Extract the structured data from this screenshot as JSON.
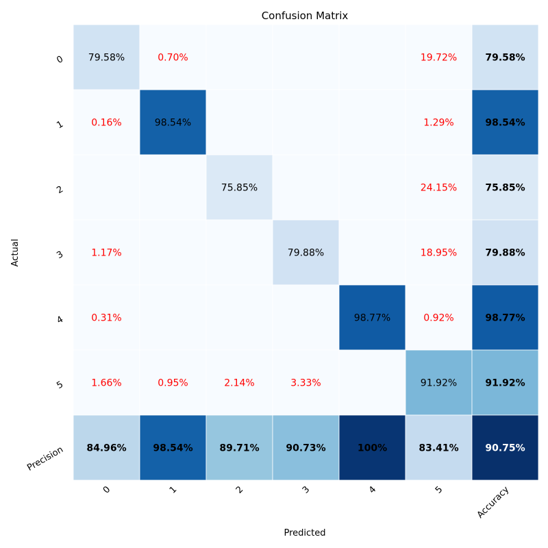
{
  "chart_data": {
    "type": "heatmap",
    "title": "Confusion Matrix",
    "xlabel": "Predicted",
    "ylabel": "Actual",
    "x_tick_labels": [
      "0",
      "1",
      "2",
      "3",
      "4",
      "5",
      "Accuracy"
    ],
    "y_tick_labels": [
      "0",
      "1",
      "2",
      "3",
      "4",
      "5",
      "Precision"
    ],
    "colormap": "Blues",
    "grid_line_color": "#ffffff",
    "diagonal_text_color": "#000000",
    "off_diagonal_text_color": "#ff0000",
    "summary_text_color": "#000000",
    "summary_text_bold": true,
    "rows": [
      {
        "actual": "0",
        "cells": [
          {
            "value": 79.58,
            "label": "79.58%"
          },
          {
            "value": 0.7,
            "label": "0.70%"
          },
          {
            "value": 0,
            "label": ""
          },
          {
            "value": 0,
            "label": ""
          },
          {
            "value": 0,
            "label": ""
          },
          {
            "value": 19.72,
            "label": "19.72%"
          },
          {
            "value": 79.58,
            "label": "79.58%"
          }
        ]
      },
      {
        "actual": "1",
        "cells": [
          {
            "value": 0.16,
            "label": "0.16%"
          },
          {
            "value": 98.54,
            "label": "98.54%"
          },
          {
            "value": 0,
            "label": ""
          },
          {
            "value": 0,
            "label": ""
          },
          {
            "value": 0,
            "label": ""
          },
          {
            "value": 1.29,
            "label": "1.29%"
          },
          {
            "value": 98.54,
            "label": "98.54%"
          }
        ]
      },
      {
        "actual": "2",
        "cells": [
          {
            "value": 0,
            "label": ""
          },
          {
            "value": 0,
            "label": ""
          },
          {
            "value": 75.85,
            "label": "75.85%"
          },
          {
            "value": 0,
            "label": ""
          },
          {
            "value": 0,
            "label": ""
          },
          {
            "value": 24.15,
            "label": "24.15%"
          },
          {
            "value": 75.85,
            "label": "75.85%"
          }
        ]
      },
      {
        "actual": "3",
        "cells": [
          {
            "value": 1.17,
            "label": "1.17%"
          },
          {
            "value": 0,
            "label": ""
          },
          {
            "value": 0,
            "label": ""
          },
          {
            "value": 79.88,
            "label": "79.88%"
          },
          {
            "value": 0,
            "label": ""
          },
          {
            "value": 18.95,
            "label": "18.95%"
          },
          {
            "value": 79.88,
            "label": "79.88%"
          }
        ]
      },
      {
        "actual": "4",
        "cells": [
          {
            "value": 0.31,
            "label": "0.31%"
          },
          {
            "value": 0,
            "label": ""
          },
          {
            "value": 0,
            "label": ""
          },
          {
            "value": 0,
            "label": ""
          },
          {
            "value": 98.77,
            "label": "98.77%"
          },
          {
            "value": 0.92,
            "label": "0.92%"
          },
          {
            "value": 98.77,
            "label": "98.77%"
          }
        ]
      },
      {
        "actual": "5",
        "cells": [
          {
            "value": 1.66,
            "label": "1.66%"
          },
          {
            "value": 0.95,
            "label": "0.95%"
          },
          {
            "value": 2.14,
            "label": "2.14%"
          },
          {
            "value": 3.33,
            "label": "3.33%"
          },
          {
            "value": 0,
            "label": ""
          },
          {
            "value": 91.92,
            "label": "91.92%"
          },
          {
            "value": 91.92,
            "label": "91.92%"
          }
        ]
      },
      {
        "actual": "Precision",
        "cells": [
          {
            "value": 84.96,
            "label": "84.96%"
          },
          {
            "value": 98.54,
            "label": "98.54%"
          },
          {
            "value": 89.71,
            "label": "89.71%"
          },
          {
            "value": 90.73,
            "label": "90.73%"
          },
          {
            "value": 100,
            "label": "100%"
          },
          {
            "value": 83.41,
            "label": "83.41%"
          },
          {
            "value": 90.75,
            "label": "90.75%"
          }
        ]
      }
    ]
  }
}
